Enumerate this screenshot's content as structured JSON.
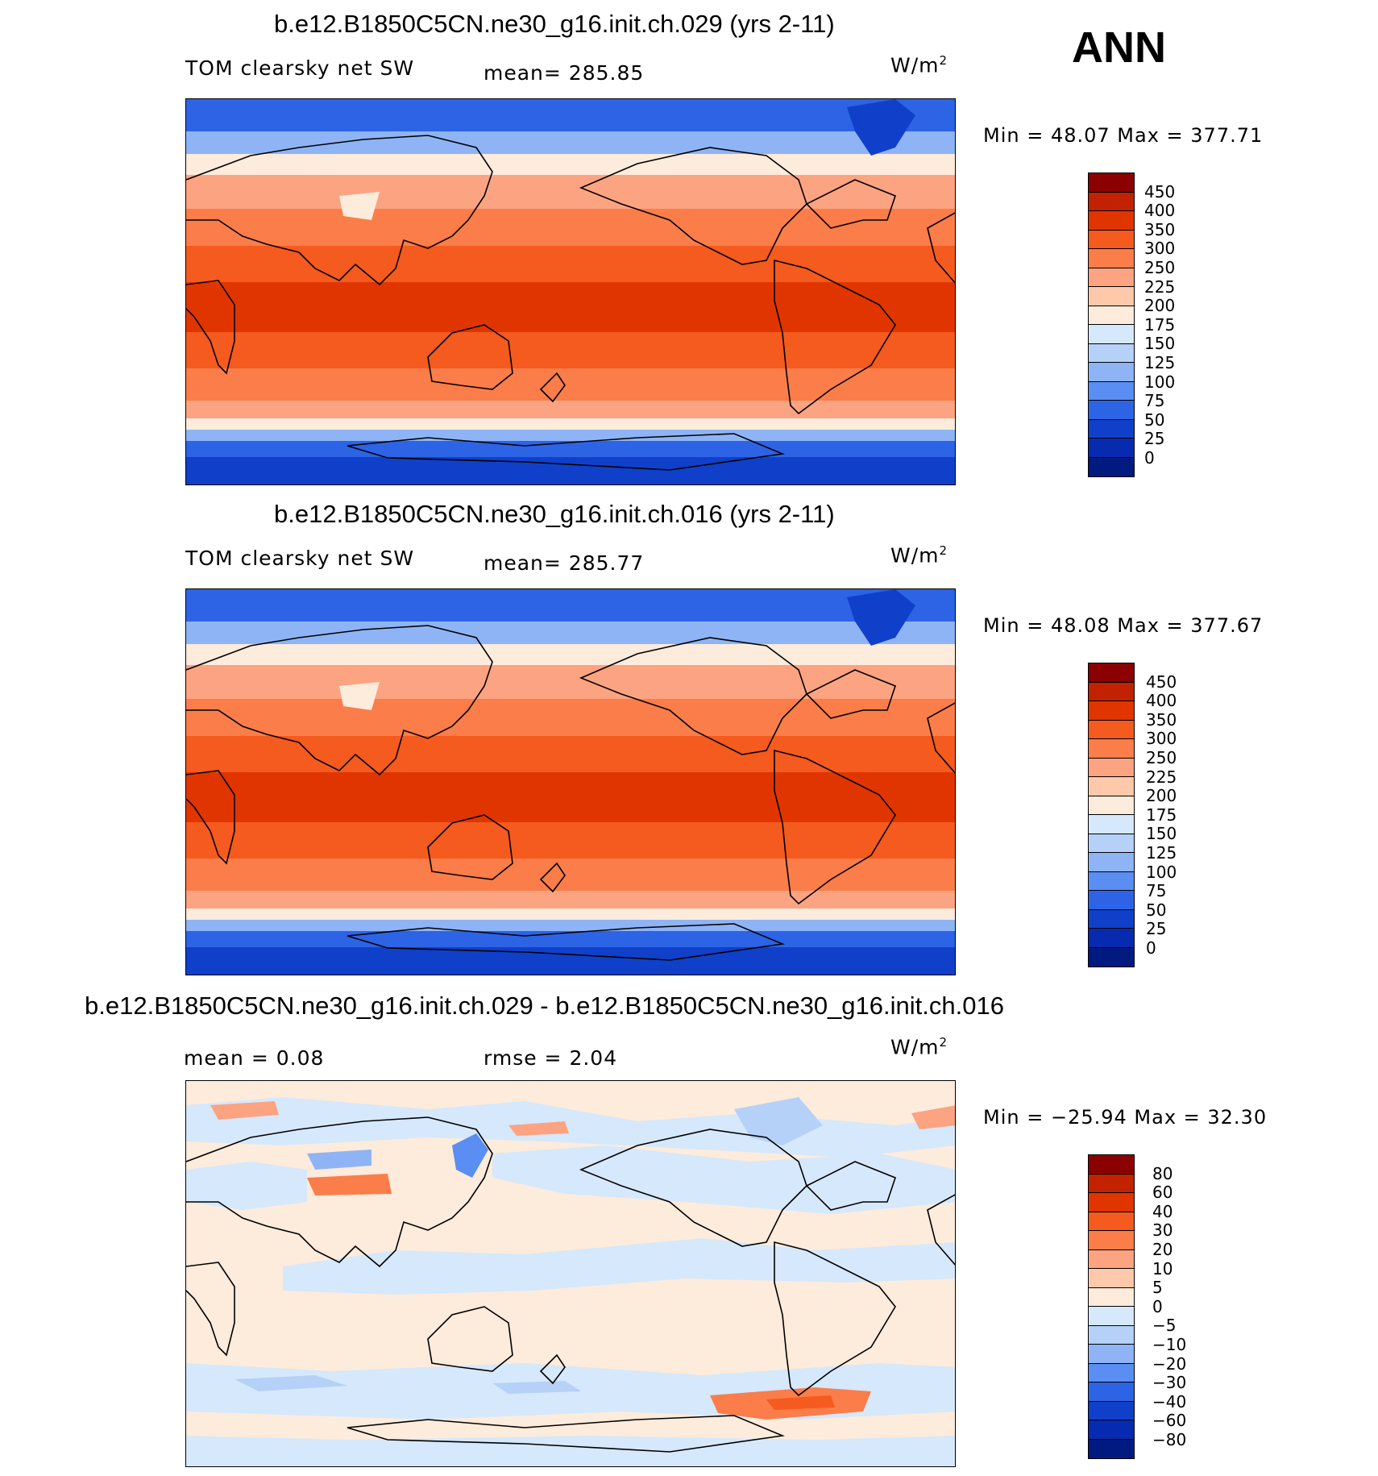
{
  "figure": {
    "season_label": "ANN"
  },
  "panels": [
    {
      "title": "b.e12.B1850C5CN.ne30_g16.init.ch.029 (yrs 2-11)",
      "left_label": "TOM clearsky net SW",
      "stat_label": "mean= 285.85",
      "units": "W/m",
      "units_sup": "2",
      "minmax": "Min =   48.07 Max = 377.71",
      "colorbar": {
        "levels": [
          "450",
          "400",
          "350",
          "300",
          "250",
          "225",
          "200",
          "175",
          "150",
          "125",
          "100",
          "75",
          "50",
          "25",
          "0"
        ],
        "colors": [
          "#8b0000",
          "#c22200",
          "#e13500",
          "#f55a1e",
          "#fa7d4a",
          "#fca382",
          "#fdc9aa",
          "#fdebdc",
          "#d6e8fb",
          "#b5d1f7",
          "#8fb4f5",
          "#5a8ef2",
          "#2d63e5",
          "#1040c9",
          "#062bb0",
          "#001a80"
        ]
      }
    },
    {
      "title": "b.e12.B1850C5CN.ne30_g16.init.ch.016 (yrs 2-11)",
      "left_label": "TOM clearsky net SW",
      "stat_label": "mean= 285.77",
      "units": "W/m",
      "units_sup": "2",
      "minmax": "Min =   48.08 Max = 377.67",
      "colorbar": {
        "levels": [
          "450",
          "400",
          "350",
          "300",
          "250",
          "225",
          "200",
          "175",
          "150",
          "125",
          "100",
          "75",
          "50",
          "25",
          "0"
        ],
        "colors": [
          "#8b0000",
          "#c22200",
          "#e13500",
          "#f55a1e",
          "#fa7d4a",
          "#fca382",
          "#fdc9aa",
          "#fdebdc",
          "#d6e8fb",
          "#b5d1f7",
          "#8fb4f5",
          "#5a8ef2",
          "#2d63e5",
          "#1040c9",
          "#062bb0",
          "#001a80"
        ]
      }
    },
    {
      "title": "b.e12.B1850C5CN.ne30_g16.init.ch.029 - b.e12.B1850C5CN.ne30_g16.init.ch.016",
      "left_label": "mean =    0.08",
      "stat_label": "rmse =    2.04",
      "units": "W/m",
      "units_sup": "2",
      "minmax": "Min = −25.94 Max =   32.30",
      "colorbar": {
        "levels": [
          "80",
          "60",
          "40",
          "30",
          "20",
          "10",
          "5",
          "0",
          "−5",
          "−10",
          "−20",
          "−30",
          "−40",
          "−60",
          "−80"
        ],
        "colors": [
          "#8b0000",
          "#c22200",
          "#e13500",
          "#f55a1e",
          "#fa7d4a",
          "#fca382",
          "#fdc9aa",
          "#fdebdc",
          "#d6e8fb",
          "#b5d1f7",
          "#8fb4f5",
          "#5a8ef2",
          "#2d63e5",
          "#1040c9",
          "#062bb0",
          "#001a80"
        ]
      }
    }
  ]
}
